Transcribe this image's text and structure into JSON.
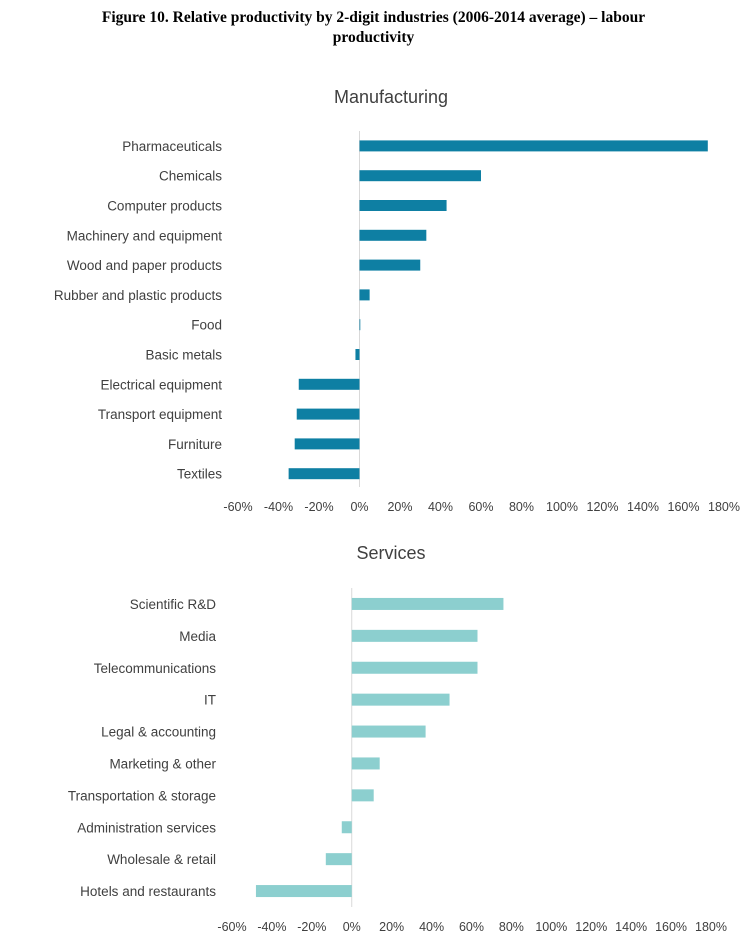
{
  "figure": {
    "title_line1": "Figure 10. Relative productivity by 2-digit industries (2006-2014 average) – labour",
    "title_line2": "productivity"
  },
  "chart_data": [
    {
      "type": "bar",
      "orientation": "horizontal",
      "title": "Manufacturing",
      "categories": [
        "Pharmaceuticals",
        "Chemicals",
        "Computer products",
        "Machinery and equipment",
        "Wood and paper products",
        "Rubber and plastic products",
        "Food",
        "Basic metals",
        "Electrical equipment",
        "Transport equipment",
        "Furniture",
        "Textiles"
      ],
      "values": [
        172,
        60,
        43,
        33,
        30,
        5,
        0,
        -2,
        -30,
        -31,
        -32,
        -35
      ],
      "value_unit": "%",
      "xlim": [
        -60,
        180
      ],
      "ticks": [
        "-60%",
        "-40%",
        "-20%",
        "0%",
        "20%",
        "40%",
        "60%",
        "80%",
        "100%",
        "120%",
        "140%",
        "160%",
        "180%"
      ],
      "bar_color": "#0e7fa3",
      "grid": false,
      "legend": "none"
    },
    {
      "type": "bar",
      "orientation": "horizontal",
      "title": "Services",
      "categories": [
        "Scientific R&D",
        "Media",
        "Telecommunications",
        "IT",
        "Legal & accounting",
        "Marketing & other",
        "Transportation & storage",
        "Administration services",
        "Wholesale & retail",
        "Hotels and restaurants"
      ],
      "values": [
        76,
        63,
        63,
        49,
        37,
        14,
        11,
        -5,
        -13,
        -48
      ],
      "value_unit": "%",
      "xlim": [
        -60,
        180
      ],
      "ticks": [
        "-60%",
        "-40%",
        "-20%",
        "0%",
        "20%",
        "40%",
        "60%",
        "80%",
        "100%",
        "120%",
        "140%",
        "160%",
        "180%"
      ],
      "bar_color": "#8ccfcf",
      "grid": false,
      "legend": "none"
    }
  ]
}
